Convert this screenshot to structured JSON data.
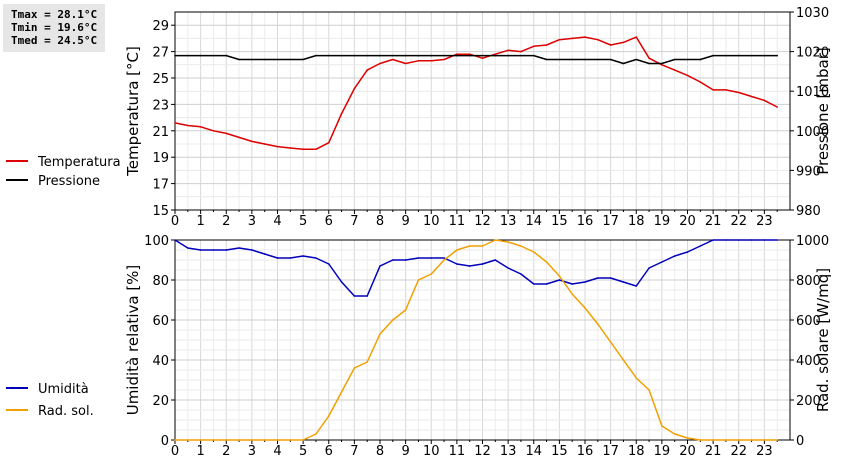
{
  "stats": {
    "tmax": "Tmax = 28.1°C",
    "tmin": "Tmin = 19.6°C",
    "tmed": "Tmed = 24.5°C"
  },
  "chart_data": [
    {
      "type": "line",
      "grid": true,
      "legend_placement": "left",
      "xlabel": "",
      "ylabel": "Temperatura [°C]",
      "ylabel_right": "Pressione [mbar]",
      "xlim": [
        0,
        24
      ],
      "ylim": [
        15,
        30
      ],
      "ylim_right": [
        980,
        1030
      ],
      "xticks": [
        "0",
        "1",
        "2",
        "3",
        "4",
        "5",
        "6",
        "7",
        "8",
        "9",
        "10",
        "11",
        "12",
        "13",
        "14",
        "15",
        "16",
        "17",
        "18",
        "19",
        "20",
        "21",
        "22",
        "23"
      ],
      "yticks": [
        "15",
        "17",
        "19",
        "21",
        "23",
        "25",
        "27",
        "29"
      ],
      "yticks_right": [
        "980",
        "990",
        "1000",
        "1010",
        "1020",
        "1030"
      ],
      "series": [
        {
          "name": "Temperatura",
          "axis": "left",
          "color": "#dd0000",
          "x": [
            0,
            0.5,
            1,
            1.5,
            2,
            2.5,
            3,
            3.5,
            4,
            4.5,
            5,
            5.5,
            6,
            6.5,
            7,
            7.5,
            8,
            8.5,
            9,
            9.5,
            10,
            10.5,
            11,
            11.5,
            12,
            12.5,
            13,
            13.5,
            14,
            14.5,
            15,
            15.5,
            16,
            16.5,
            17,
            17.5,
            18,
            18.5,
            19,
            19.5,
            20,
            20.5,
            21,
            21.5,
            22,
            22.5,
            23,
            23.5
          ],
          "values": [
            21.6,
            21.4,
            21.3,
            21.0,
            20.8,
            20.5,
            20.2,
            20.0,
            19.8,
            19.7,
            19.6,
            19.6,
            20.1,
            22.3,
            24.2,
            25.6,
            26.1,
            26.4,
            26.1,
            26.3,
            26.3,
            26.4,
            26.8,
            26.8,
            26.5,
            26.8,
            27.1,
            27.0,
            27.4,
            27.5,
            27.9,
            28.0,
            28.1,
            27.9,
            27.5,
            27.7,
            28.1,
            26.5,
            26.0,
            25.6,
            25.2,
            24.7,
            24.1,
            24.1,
            23.9,
            23.6,
            23.3,
            22.8
          ]
        },
        {
          "name": "Pressione",
          "axis": "right",
          "color": "#000000",
          "x": [
            0,
            0.5,
            1,
            1.5,
            2,
            2.5,
            3,
            3.5,
            4,
            4.5,
            5,
            5.5,
            6,
            6.5,
            7,
            7.5,
            8,
            8.5,
            9,
            9.5,
            10,
            10.5,
            11,
            11.5,
            12,
            12.5,
            13,
            13.5,
            14,
            14.5,
            15,
            15.5,
            16,
            16.5,
            17,
            17.5,
            18,
            18.5,
            19,
            19.5,
            20,
            20.5,
            21,
            21.5,
            22,
            22.5,
            23,
            23.5
          ],
          "values": [
            1019,
            1019,
            1019,
            1019,
            1019,
            1018,
            1018,
            1018,
            1018,
            1018,
            1018,
            1019,
            1019,
            1019,
            1019,
            1019,
            1019,
            1019,
            1019,
            1019,
            1019,
            1019,
            1019,
            1019,
            1019,
            1019,
            1019,
            1019,
            1019,
            1018,
            1018,
            1018,
            1018,
            1018,
            1018,
            1017,
            1018,
            1017,
            1017,
            1018,
            1018,
            1018,
            1019,
            1019,
            1019,
            1019,
            1019,
            1019
          ]
        }
      ]
    },
    {
      "type": "line",
      "grid": true,
      "legend_placement": "left",
      "xlabel": "",
      "ylabel": "Umidità relativa [%]",
      "ylabel_right": "Rad. solare [W/mq]",
      "xlim": [
        0,
        24
      ],
      "ylim": [
        0,
        100
      ],
      "ylim_right": [
        0,
        1000
      ],
      "xticks": [
        "0",
        "1",
        "2",
        "3",
        "4",
        "5",
        "6",
        "7",
        "8",
        "9",
        "10",
        "11",
        "12",
        "13",
        "14",
        "15",
        "16",
        "17",
        "18",
        "19",
        "20",
        "21",
        "22",
        "23"
      ],
      "yticks": [
        "0",
        "20",
        "40",
        "60",
        "80",
        "100"
      ],
      "yticks_right": [
        "0",
        "200",
        "400",
        "600",
        "800",
        "1000"
      ],
      "series": [
        {
          "name": "Umidità",
          "axis": "left",
          "color": "#0000bb",
          "x": [
            0,
            0.5,
            1,
            1.5,
            2,
            2.5,
            3,
            3.5,
            4,
            4.5,
            5,
            5.5,
            6,
            6.5,
            7,
            7.5,
            8,
            8.5,
            9,
            9.5,
            10,
            10.5,
            11,
            11.5,
            12,
            12.5,
            13,
            13.5,
            14,
            14.5,
            15,
            15.5,
            16,
            16.5,
            17,
            17.5,
            18,
            18.5,
            19,
            19.5,
            20,
            20.5,
            21,
            21.5,
            22,
            22.5,
            23,
            23.5
          ],
          "values": [
            100,
            96,
            95,
            95,
            95,
            96,
            95,
            93,
            91,
            91,
            92,
            91,
            88,
            79,
            72,
            72,
            87,
            90,
            90,
            91,
            91,
            91,
            88,
            87,
            88,
            90,
            86,
            83,
            78,
            78,
            80,
            78,
            79,
            81,
            81,
            79,
            77,
            86,
            89,
            92,
            94,
            97,
            100,
            100,
            100,
            100,
            100,
            100
          ]
        },
        {
          "name": "Rad. sol.",
          "axis": "right",
          "color": "#f0a000",
          "x": [
            0,
            0.5,
            1,
            1.5,
            2,
            2.5,
            3,
            3.5,
            4,
            4.5,
            5,
            5.5,
            6,
            6.5,
            7,
            7.5,
            8,
            8.5,
            9,
            9.5,
            10,
            10.5,
            11,
            11.5,
            12,
            12.5,
            13,
            13.5,
            14,
            14.5,
            15,
            15.5,
            16,
            16.5,
            17,
            17.5,
            18,
            18.5,
            19,
            19.5,
            20,
            20.5,
            21,
            21.5,
            22,
            22.5,
            23,
            23.5
          ],
          "values": [
            0,
            0,
            0,
            0,
            0,
            0,
            0,
            0,
            0,
            0,
            0,
            30,
            120,
            240,
            360,
            390,
            530,
            600,
            650,
            800,
            830,
            900,
            950,
            970,
            970,
            1000,
            990,
            970,
            940,
            890,
            820,
            730,
            660,
            580,
            490,
            400,
            310,
            250,
            70,
            30,
            10,
            0,
            0,
            0,
            0,
            0,
            0,
            0
          ]
        }
      ]
    }
  ]
}
